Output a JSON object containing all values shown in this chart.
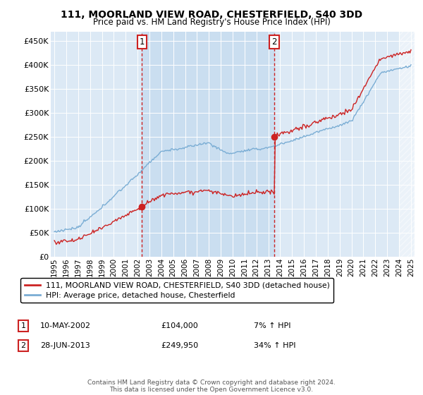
{
  "title": "111, MOORLAND VIEW ROAD, CHESTERFIELD, S40 3DD",
  "subtitle": "Price paid vs. HM Land Registry's House Price Index (HPI)",
  "legend_line1": "111, MOORLAND VIEW ROAD, CHESTERFIELD, S40 3DD (detached house)",
  "legend_line2": "HPI: Average price, detached house, Chesterfield",
  "annotation1_label": "1",
  "annotation1_date": "10-MAY-2002",
  "annotation1_price": "£104,000",
  "annotation1_hpi": "7% ↑ HPI",
  "annotation1_year": 2002.37,
  "annotation1_value": 104000,
  "annotation2_label": "2",
  "annotation2_date": "28-JUN-2013",
  "annotation2_price": "£249,950",
  "annotation2_hpi": "34% ↑ HPI",
  "annotation2_year": 2013.5,
  "annotation2_value": 249950,
  "yticks": [
    0,
    50000,
    100000,
    150000,
    200000,
    250000,
    300000,
    350000,
    400000,
    450000
  ],
  "ylim": [
    0,
    470000
  ],
  "xlim_min": 1994.7,
  "xlim_max": 2025.3,
  "background_color": "#dce9f5",
  "hpi_color": "#7aadd4",
  "price_color": "#cc2222",
  "vline_color": "#cc2222",
  "shade_color": "#c8ddf0",
  "footer_text": "Contains HM Land Registry data © Crown copyright and database right 2024.\nThis data is licensed under the Open Government Licence v3.0.",
  "xticks": [
    1995,
    1996,
    1997,
    1998,
    1999,
    2000,
    2001,
    2002,
    2003,
    2004,
    2005,
    2006,
    2007,
    2008,
    2009,
    2010,
    2011,
    2012,
    2013,
    2014,
    2015,
    2016,
    2017,
    2018,
    2019,
    2020,
    2021,
    2022,
    2023,
    2024,
    2025
  ]
}
